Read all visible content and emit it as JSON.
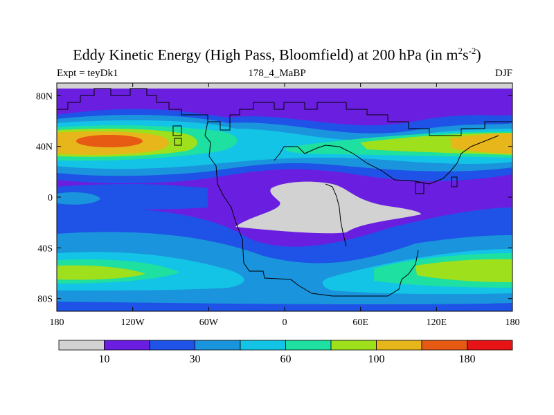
{
  "title": {
    "main": "Eddy Kinetic Energy (High Pass, Bloomfield) at 200 hPa (in m",
    "sup1": "2",
    "mid": "s",
    "sup2": "-2",
    "close": ")"
  },
  "subtitle": {
    "left": "Expt = teyDk1",
    "center": "178_4_MaBP",
    "right": "DJF"
  },
  "map": {
    "projection": "cylindrical equidistant",
    "lon_range": [
      -180,
      180
    ],
    "lat_range": [
      -90,
      90
    ],
    "x_ticks": [
      "180",
      "120W",
      "60W",
      "0",
      "60E",
      "120E",
      "180"
    ],
    "y_ticks": [
      "80N",
      "40N",
      "0",
      "40S",
      "80S"
    ],
    "missing_color": "#d2d2d2"
  },
  "colorbar": {
    "colors": [
      "#d2d2d2",
      "#6a1fe0",
      "#1f52e6",
      "#1a94dc",
      "#14c4e6",
      "#1ee0a0",
      "#9ee01c",
      "#e6b61a",
      "#e65a14",
      "#e61414"
    ],
    "labels": [
      "10",
      "30",
      "60",
      "100",
      "180"
    ]
  },
  "chart_data": {
    "type": "heatmap",
    "title": "Eddy Kinetic Energy (High Pass, Bloomfield) at 200 hPa (in m2s-2)",
    "xlabel": "",
    "ylabel": "",
    "xlim": [
      -180,
      180
    ],
    "ylim": [
      -90,
      90
    ],
    "units": "m2s-2",
    "levels_labeled": [
      10,
      30,
      60,
      100,
      180
    ],
    "storm_tracks": [
      {
        "lon": -145,
        "lat": 42,
        "level_max": 180
      },
      {
        "lon": 165,
        "lat": 42,
        "level_max": 100
      },
      {
        "lon": -65,
        "lat": 42,
        "level_max": 100
      },
      {
        "lon": -165,
        "lat": -57,
        "level_max": 100
      },
      {
        "lon": 150,
        "lat": -57,
        "level_max": 100
      }
    ]
  }
}
